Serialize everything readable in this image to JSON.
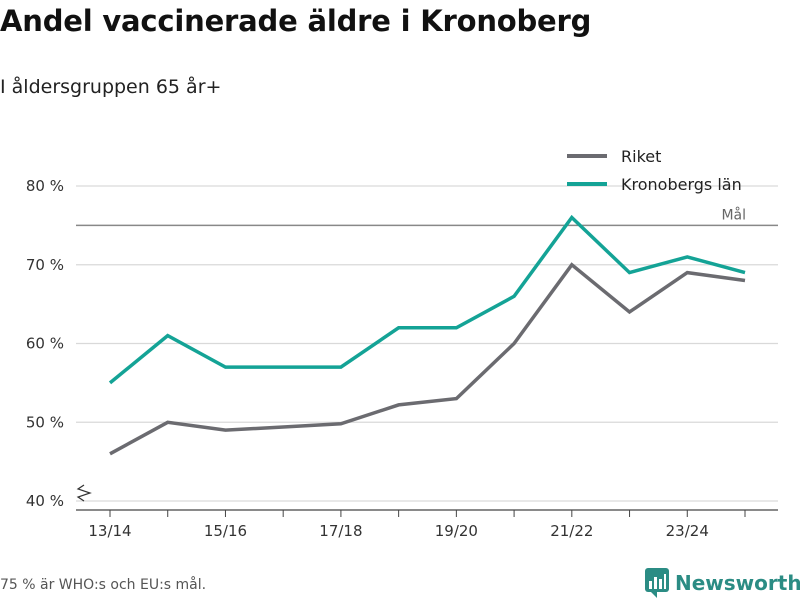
{
  "header": {
    "title": "Andel vaccinerade äldre i Kronoberg",
    "subtitle": "I åldersgruppen 65 år+"
  },
  "footer": {
    "note": "75 % är WHO:s och EU:s mål.",
    "brand": "Newsworthy"
  },
  "colors": {
    "riket": "#6b6b70",
    "kronoberg": "#14a396",
    "grid": "#d9d9d9",
    "goal": "#888888",
    "brand": "#2b8c84"
  },
  "chart_data": {
    "type": "line",
    "title": "Andel vaccinerade äldre i Kronoberg",
    "subtitle": "I åldersgruppen 65 år+",
    "x": [
      "13/14",
      "14/15",
      "15/16",
      "16/17",
      "17/18",
      "18/19",
      "19/20",
      "20/21",
      "21/22",
      "22/23",
      "23/24",
      "24/25"
    ],
    "x_tick_labels": [
      "13/14",
      "15/16",
      "17/18",
      "19/20",
      "21/22",
      "23/24"
    ],
    "y_ticks": [
      40,
      50,
      60,
      70,
      80
    ],
    "y_tick_suffix": " %",
    "ylim": [
      40,
      82
    ],
    "grid": true,
    "legend_position": "top-right",
    "series": [
      {
        "name": "Riket",
        "values": [
          46,
          50,
          49,
          49.4,
          49.8,
          52.2,
          53,
          60,
          70,
          64,
          69,
          68
        ]
      },
      {
        "name": "Kronobergs län",
        "values": [
          55,
          61,
          57,
          57,
          57,
          62,
          62,
          66,
          76,
          69,
          71,
          69
        ]
      }
    ],
    "annotations": [
      {
        "label": "Mål",
        "y": 75
      }
    ]
  }
}
